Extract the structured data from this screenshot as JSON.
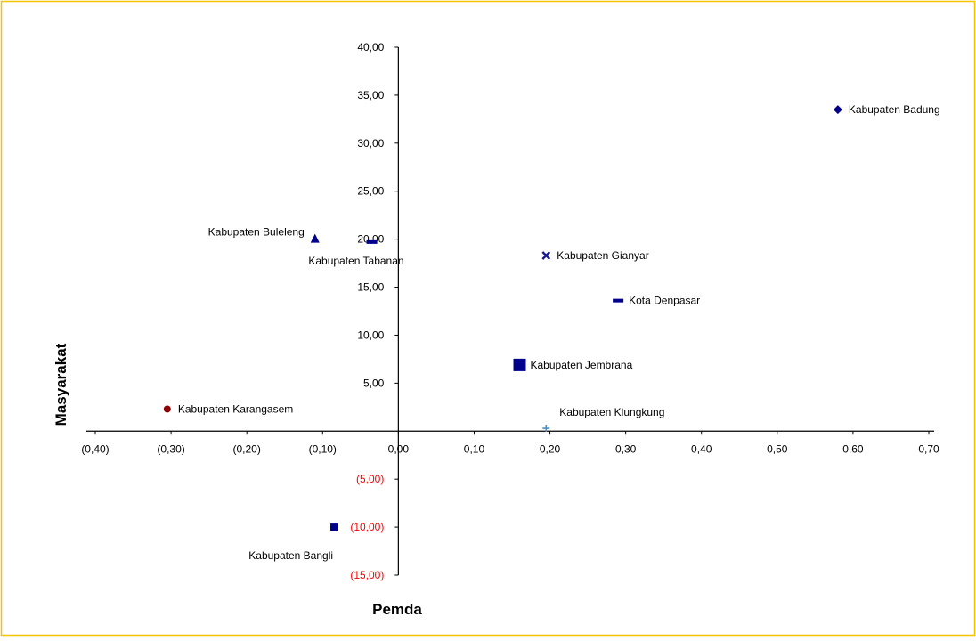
{
  "chart_data": {
    "type": "scatter",
    "title": "",
    "xlabel": "Pemda",
    "ylabel": "Masyarakat",
    "xlim": [
      -0.4,
      0.7
    ],
    "ylim": [
      -15,
      40
    ],
    "grid": false,
    "legend": "none",
    "frame_color": "#f5c400",
    "axis_color": "#000000",
    "x_ticks": [
      {
        "value": -0.4,
        "label": "(0,40)"
      },
      {
        "value": -0.3,
        "label": "(0,30)"
      },
      {
        "value": -0.2,
        "label": "(0,20)"
      },
      {
        "value": -0.1,
        "label": "(0,10)"
      },
      {
        "value": 0.0,
        "label": "0,00"
      },
      {
        "value": 0.1,
        "label": "0,10"
      },
      {
        "value": 0.2,
        "label": "0,20"
      },
      {
        "value": 0.3,
        "label": "0,30"
      },
      {
        "value": 0.4,
        "label": "0,40"
      },
      {
        "value": 0.5,
        "label": "0,50"
      },
      {
        "value": 0.6,
        "label": "0,60"
      },
      {
        "value": 0.7,
        "label": "0,70"
      }
    ],
    "y_ticks": [
      {
        "value": 40,
        "label": "40,00",
        "color": "#000000"
      },
      {
        "value": 35,
        "label": "35,00",
        "color": "#000000"
      },
      {
        "value": 30,
        "label": "30,00",
        "color": "#000000"
      },
      {
        "value": 25,
        "label": "25,00",
        "color": "#000000"
      },
      {
        "value": 20,
        "label": "20,00",
        "color": "#000000"
      },
      {
        "value": 15,
        "label": "15,00",
        "color": "#000000"
      },
      {
        "value": 10,
        "label": "10,00",
        "color": "#000000"
      },
      {
        "value": 5,
        "label": "5,00",
        "color": "#000000"
      },
      {
        "value": -5,
        "label": "(5,00)",
        "color": "#ff0000"
      },
      {
        "value": -10,
        "label": "(10,00)",
        "color": "#ff0000"
      },
      {
        "value": -15,
        "label": "(15,00)",
        "color": "#ff0000"
      }
    ],
    "points": [
      {
        "name": "Kabupaten Badung",
        "x": 0.58,
        "y": 33.5,
        "marker": "diamond",
        "color": "#00008b",
        "label_pos": "right"
      },
      {
        "name": "Kabupaten Buleleng",
        "x": -0.11,
        "y": 20.0,
        "marker": "triangle",
        "color": "#00008b",
        "label_pos": "left"
      },
      {
        "name": "Kabupaten Tabanan",
        "x": -0.035,
        "y": 19.7,
        "marker": "dash",
        "color": "#00008b",
        "label_pos": "below"
      },
      {
        "name": "Kabupaten Gianyar",
        "x": 0.195,
        "y": 18.3,
        "marker": "x",
        "color": "#1a1a8c",
        "label_pos": "right"
      },
      {
        "name": "Kota Denpasar",
        "x": 0.29,
        "y": 13.6,
        "marker": "dash",
        "color": "#00008b",
        "label_pos": "right"
      },
      {
        "name": "Kabupaten Jembrana",
        "x": 0.16,
        "y": 6.9,
        "marker": "square",
        "color": "#00008b",
        "label_pos": "right"
      },
      {
        "name": "Kabupaten Karangasem",
        "x": -0.305,
        "y": 2.3,
        "marker": "circle",
        "color": "#8b0000",
        "label_pos": "right"
      },
      {
        "name": "Kabupaten Klungkung",
        "x": 0.195,
        "y": 0.3,
        "marker": "plus",
        "color": "#4a90c2",
        "label_pos": "above-right"
      },
      {
        "name": "Kabupaten Bangli",
        "x": -0.085,
        "y": -10.0,
        "marker": "square-small",
        "color": "#00008b",
        "label_pos": "below-left"
      }
    ]
  }
}
